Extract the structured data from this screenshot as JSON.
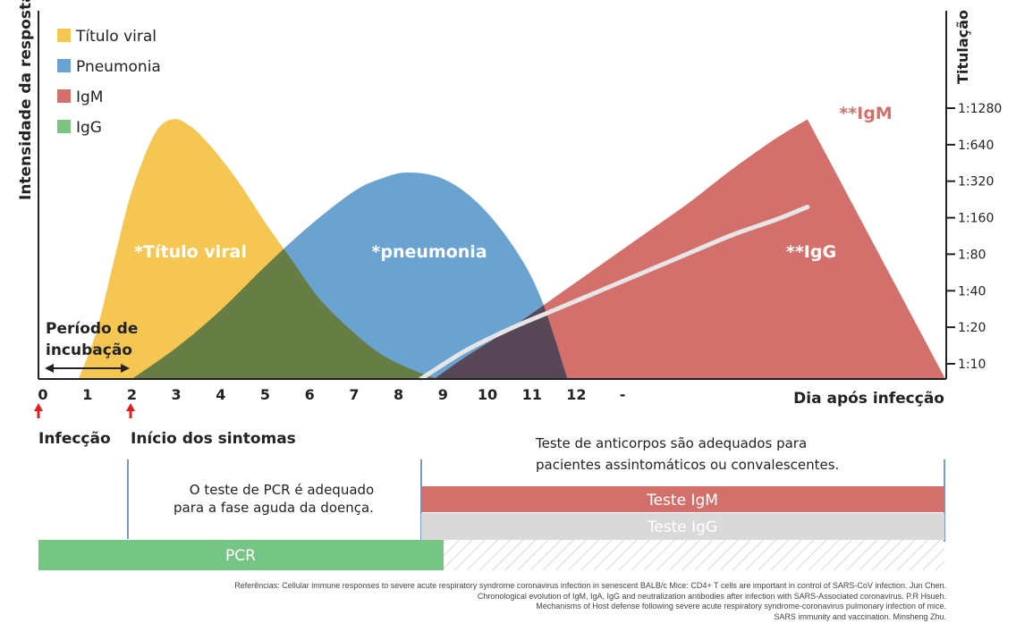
{
  "chart_data": {
    "type": "area",
    "ylabel_left": "Intensidade da resposta",
    "ylabel_right": "Titulação",
    "xlabel": "Dia após infecção",
    "x_ticks": [
      "0",
      "1",
      "2",
      "3",
      "4",
      "5",
      "6",
      "7",
      "8",
      "9",
      "10",
      "11",
      "12",
      "-"
    ],
    "y_right_ticks": [
      "1:10",
      "1:20",
      "1:40",
      "1:80",
      "1:160",
      "1:320",
      "1:640",
      "1:1280"
    ],
    "legend": [
      {
        "name": "Título viral",
        "color": "#f6c653"
      },
      {
        "name": "Pneumonia",
        "color": "#6aa2d0"
      },
      {
        "name": "IgM",
        "color": "#d4706b"
      },
      {
        "name": "IgG",
        "color": "#7dc483"
      }
    ],
    "series": [
      {
        "name": "*Título viral",
        "color": "#f6c653",
        "x": [
          0.8,
          1.2,
          1.6,
          2.0,
          2.5,
          2.9,
          3.3,
          3.8,
          4.4,
          5.0,
          5.6,
          6.2,
          6.9,
          7.6,
          8.3,
          8.9
        ],
        "y": [
          0,
          15,
          38,
          60,
          78,
          83,
          81,
          74,
          63,
          50,
          38,
          26,
          16,
          8,
          3,
          0
        ]
      },
      {
        "name": "*pneumonia",
        "color": "#6aa2d0",
        "x": [
          2.0,
          3.0,
          4.0,
          5.0,
          6.0,
          7.0,
          7.6,
          8.2,
          9.0,
          9.8,
          10.6,
          11.2,
          11.8
        ],
        "y": [
          0,
          10,
          22,
          36,
          49,
          60,
          64,
          66,
          64,
          56,
          42,
          26,
          0
        ]
      },
      {
        "name": "**IgM",
        "color": "#d4706b",
        "x": [
          8.8,
          9.5,
          10.5,
          11.5,
          12.5,
          13.5,
          14.5,
          15.5,
          16.5,
          17.2
        ],
        "y": [
          0,
          7,
          16,
          26,
          36,
          46,
          56,
          67,
          77,
          83
        ]
      },
      {
        "name": "**IgG",
        "color": "#e6e6e6",
        "x": [
          8.5,
          9.5,
          10.5,
          11.5,
          12.5,
          13.5,
          14.5,
          15.5,
          16.5,
          17.2
        ],
        "y": [
          0,
          9,
          16,
          22,
          28,
          34,
          40,
          46,
          51,
          55
        ]
      }
    ],
    "incubation": {
      "label_line1": "Período de",
      "label_line2": "incubação",
      "from": 0,
      "to": 2
    },
    "markers": [
      {
        "x": 0,
        "label": "Infecção"
      },
      {
        "x": 2,
        "label": "Início dos sintomas"
      }
    ]
  },
  "tests": {
    "pcr_note_line1": "O teste de PCR é adequado",
    "pcr_note_line2": "para a fase aguda da doença.",
    "antibody_note_line1": "Teste de anticorpos são adequados para",
    "antibody_note_line2": "pacientes assintomáticos ou convalescentes.",
    "igm_label": "Teste IgM",
    "igg_label": "Teste IgG",
    "pcr_label": "PCR",
    "colors": {
      "igm": "#d4706b",
      "igg": "#d9d9d9",
      "pcr": "#75c585",
      "divider": "#4a78b8"
    }
  },
  "references": [
    "Referências: Cellular immune responses to severe acute respiratory syndrome coronavirus infection in senescent BALB/c Mice: CD4+ T cells are important in control of SARS-CoV infection. Jun Chen.",
    "Chronological evolution of IgM, IgA, IgG and neutralization antibodies after infection with SARS-Associated coronavirus. P.R Hsueh.",
    "Mechanisms of Host defense following severe acute respiratory syndrome-coronavirus pulmonary infection of mice.",
    "SARS immunity and vaccination. Minsheng Zhu."
  ]
}
